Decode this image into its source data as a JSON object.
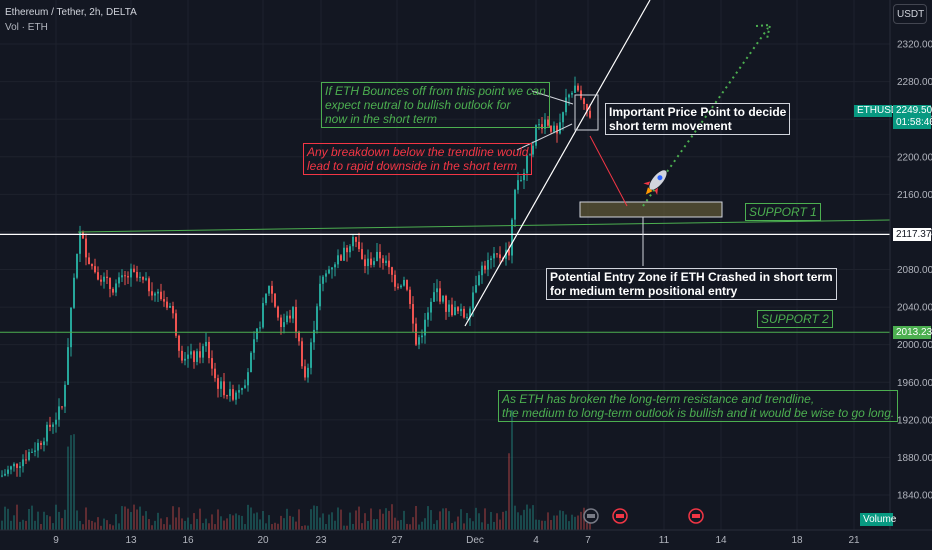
{
  "header": {
    "symbol_line": "Ethereum / Tether, 2h, DELTA",
    "vol_line": "Vol · ETH"
  },
  "currency_button": "USDT",
  "price_tag": {
    "symbol": "ETHUSDT",
    "price": "2249.50",
    "countdown": "01:58:40"
  },
  "line_tags": {
    "upper_line": "2117.37",
    "support2_line": "2013.23"
  },
  "volume_button": "Volume",
  "colors": {
    "bg": "#131722",
    "up": "#26a69a",
    "down": "#ef5350",
    "support": "#4caf50",
    "teal_tag": "#089981"
  },
  "annotations": {
    "bounce": "If ETH Bounces off from this point we can\nexpect neutral to bullish outlook for\nnow in the short term",
    "breakdown": "Any breakdown below the trendline would\nlead to rapid downside in the short term",
    "price_point": "Important Price Point to decide\nshort term movement",
    "entry_zone": "Potential Entry Zone if ETH Crashed in short term\nfor medium term positional entry",
    "outlook": "As ETH has broken the long-term resistance and trendline,\nthe medium to long-term outlook is bullish and it would be wise to go long.",
    "support1": "SUPPORT 1",
    "support2": "SUPPORT 2"
  },
  "chart_data": {
    "type": "candlestick",
    "y_axis": {
      "min": 1820,
      "max": 2340,
      "ticks": [
        1840,
        1880,
        1920,
        1960,
        2000,
        2040,
        2080,
        2120,
        2160,
        2200,
        2240,
        2280,
        2320
      ]
    },
    "x_ticks": [
      "9",
      "13",
      "16",
      "20",
      "23",
      "27",
      "Dec",
      "4",
      "7",
      "11",
      "14",
      "18",
      "21"
    ],
    "horizontal_levels": {
      "upper_line": 2117.37,
      "support2": 2013.23
    },
    "path": [
      [
        0,
        1860
      ],
      [
        18,
        1875
      ],
      [
        38,
        1895
      ],
      [
        62,
        1935
      ],
      [
        70,
        2040
      ],
      [
        78,
        2120
      ],
      [
        90,
        2085
      ],
      [
        110,
        2060
      ],
      [
        130,
        2075
      ],
      [
        150,
        2060
      ],
      [
        170,
        2040
      ],
      [
        180,
        1990
      ],
      [
        195,
        1985
      ],
      [
        205,
        2000
      ],
      [
        215,
        1960
      ],
      [
        230,
        1945
      ],
      [
        245,
        1965
      ],
      [
        258,
        2020
      ],
      [
        268,
        2065
      ],
      [
        280,
        2020
      ],
      [
        292,
        2035
      ],
      [
        305,
        1960
      ],
      [
        318,
        2060
      ],
      [
        330,
        2085
      ],
      [
        345,
        2100
      ],
      [
        352,
        2120
      ],
      [
        362,
        2085
      ],
      [
        380,
        2095
      ],
      [
        395,
        2065
      ],
      [
        405,
        2070
      ],
      [
        415,
        2000
      ],
      [
        425,
        2025
      ],
      [
        435,
        2060
      ],
      [
        445,
        2040
      ],
      [
        455,
        2035
      ],
      [
        465,
        2030
      ],
      [
        478,
        2080
      ],
      [
        492,
        2090
      ],
      [
        508,
        2100
      ],
      [
        515,
        2175
      ],
      [
        522,
        2180
      ],
      [
        535,
        2230
      ],
      [
        545,
        2240
      ],
      [
        557,
        2220
      ],
      [
        567,
        2270
      ],
      [
        577,
        2270
      ],
      [
        583,
        2250
      ],
      [
        589,
        2245
      ]
    ]
  }
}
